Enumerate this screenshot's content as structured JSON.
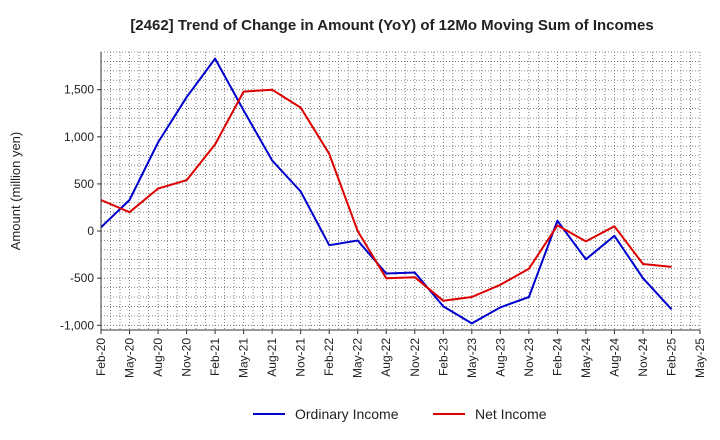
{
  "chart_data": {
    "type": "line",
    "title": "[2462]  Trend of Change in Amount (YoY) of 12Mo Moving Sum of Incomes",
    "ylabel": "Amount (million yen)",
    "xlabel": "",
    "ylim": [
      -1050,
      1900
    ],
    "yticks": [
      -1000,
      -500,
      0,
      500,
      1000,
      1500
    ],
    "ytick_labels": [
      "-1,000",
      "-500",
      "0",
      "500",
      "1,000",
      "1,500"
    ],
    "x": [
      "Feb-20",
      "Mar-20",
      "Apr-20",
      "May-20",
      "Jun-20",
      "Jul-20",
      "Aug-20",
      "Sep-20",
      "Oct-20",
      "Nov-20",
      "Dec-20",
      "Jan-21",
      "Feb-21",
      "Mar-21",
      "Apr-21",
      "May-21",
      "Jun-21",
      "Jul-21",
      "Aug-21",
      "Sep-21",
      "Oct-21",
      "Nov-21",
      "Dec-21",
      "Jan-22",
      "Feb-22",
      "Mar-22",
      "Apr-22",
      "May-22",
      "Jun-22",
      "Jul-22",
      "Aug-22",
      "Sep-22",
      "Oct-22",
      "Nov-22",
      "Dec-22",
      "Jan-23",
      "Feb-23",
      "Mar-23",
      "Apr-23",
      "May-23",
      "Jun-23",
      "Jul-23",
      "Aug-23",
      "Sep-23",
      "Oct-23",
      "Nov-23",
      "Dec-23",
      "Jan-24",
      "Feb-24",
      "Mar-24",
      "Apr-24",
      "May-24",
      "Jun-24",
      "Jul-24",
      "Aug-24",
      "Sep-24",
      "Oct-24",
      "Nov-24",
      "Dec-24",
      "Jan-25",
      "Feb-25",
      "Mar-25",
      "Apr-25",
      "May-25"
    ],
    "xtick_labels": [
      "Feb-20",
      "May-20",
      "Aug-20",
      "Nov-20",
      "Feb-21",
      "May-21",
      "Aug-21",
      "Nov-21",
      "Feb-22",
      "May-22",
      "Aug-22",
      "Nov-22",
      "Feb-23",
      "May-23",
      "Aug-23",
      "Nov-23",
      "Feb-24",
      "May-24",
      "Aug-24",
      "Nov-24",
      "Feb-25",
      "May-25"
    ],
    "series": [
      {
        "name": "Ordinary Income",
        "color": "#0000cc",
        "points": [
          {
            "x": "Feb-20",
            "y": 40
          },
          {
            "x": "May-20",
            "y": 330
          },
          {
            "x": "Aug-20",
            "y": 940
          },
          {
            "x": "Nov-20",
            "y": 1420
          },
          {
            "x": "Feb-21",
            "y": 1830
          },
          {
            "x": "May-21",
            "y": 1280
          },
          {
            "x": "Aug-21",
            "y": 750
          },
          {
            "x": "Nov-21",
            "y": 420
          },
          {
            "x": "Feb-22",
            "y": -150
          },
          {
            "x": "May-22",
            "y": -100
          },
          {
            "x": "Aug-22",
            "y": -450
          },
          {
            "x": "Nov-22",
            "y": -440
          },
          {
            "x": "Feb-23",
            "y": -800
          },
          {
            "x": "May-23",
            "y": -980
          },
          {
            "x": "Aug-23",
            "y": -810
          },
          {
            "x": "Nov-23",
            "y": -700
          },
          {
            "x": "Feb-24",
            "y": 110
          },
          {
            "x": "May-24",
            "y": -300
          },
          {
            "x": "Aug-24",
            "y": -50
          },
          {
            "x": "Nov-24",
            "y": -500
          },
          {
            "x": "Feb-25",
            "y": -830
          }
        ]
      },
      {
        "name": "Net Income",
        "color": "#dd0000",
        "points": [
          {
            "x": "Feb-20",
            "y": 330
          },
          {
            "x": "May-20",
            "y": 200
          },
          {
            "x": "Aug-20",
            "y": 450
          },
          {
            "x": "Nov-20",
            "y": 540
          },
          {
            "x": "Feb-21",
            "y": 920
          },
          {
            "x": "May-21",
            "y": 1480
          },
          {
            "x": "Aug-21",
            "y": 1500
          },
          {
            "x": "Nov-21",
            "y": 1310
          },
          {
            "x": "Feb-22",
            "y": 820
          },
          {
            "x": "May-22",
            "y": 0
          },
          {
            "x": "Aug-22",
            "y": -500
          },
          {
            "x": "Nov-22",
            "y": -490
          },
          {
            "x": "Feb-23",
            "y": -740
          },
          {
            "x": "May-23",
            "y": -700
          },
          {
            "x": "Aug-23",
            "y": -570
          },
          {
            "x": "Nov-23",
            "y": -400
          },
          {
            "x": "Feb-24",
            "y": 60
          },
          {
            "x": "May-24",
            "y": -110
          },
          {
            "x": "Aug-24",
            "y": 50
          },
          {
            "x": "Nov-24",
            "y": -350
          },
          {
            "x": "Feb-25",
            "y": -380
          }
        ]
      }
    ],
    "grid": true,
    "grid_style": "dotted",
    "legend_position": "bottom-center"
  }
}
